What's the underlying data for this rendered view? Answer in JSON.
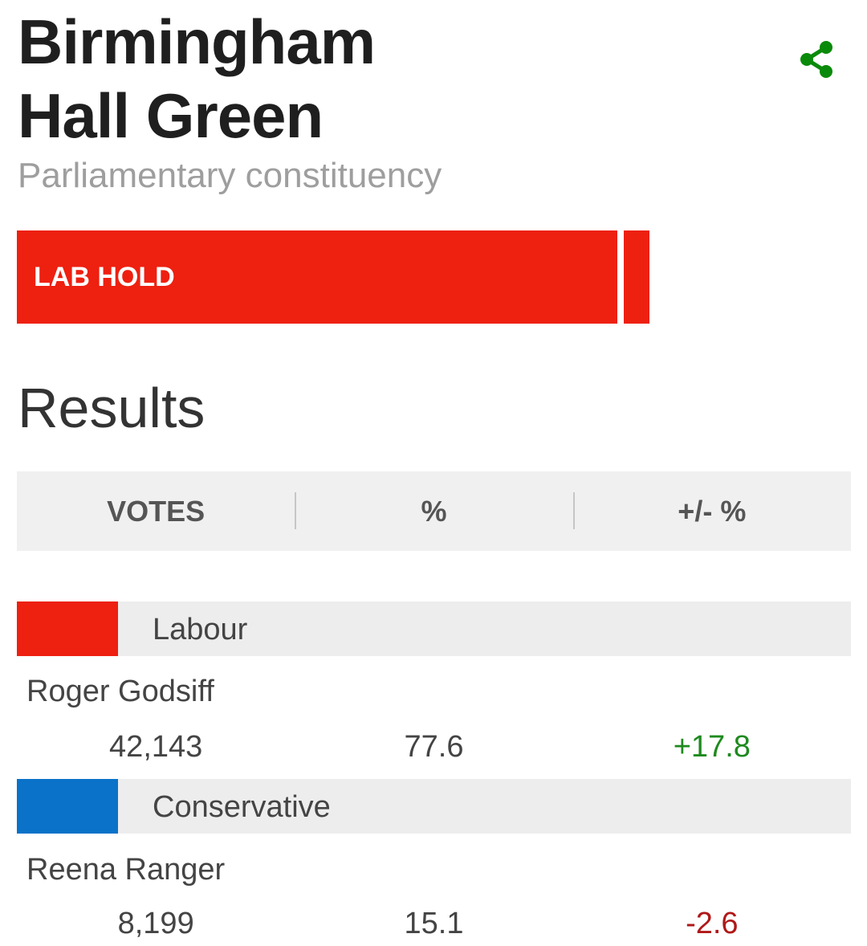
{
  "header": {
    "title_line1": "Birmingham",
    "title_line2": "Hall Green",
    "subtitle": "Parliamentary constituency",
    "share_icon": "share-icon",
    "accent_color": "#0a8a0a"
  },
  "result_bar": {
    "label": "LAB HOLD",
    "color": "#ee2010"
  },
  "results": {
    "title": "Results",
    "columns": [
      "VOTES",
      "%",
      "+/- %"
    ]
  },
  "candidates": [
    {
      "party": "Labour",
      "party_color": "#ee2010",
      "name": "Roger Godsiff",
      "votes": "42,143",
      "percent": "77.6",
      "change": "+17.8"
    },
    {
      "party": "Conservative",
      "party_color": "#0a72c8",
      "name": "Reena Ranger",
      "votes": "8,199",
      "percent": "15.1",
      "change": "-2.6"
    }
  ]
}
